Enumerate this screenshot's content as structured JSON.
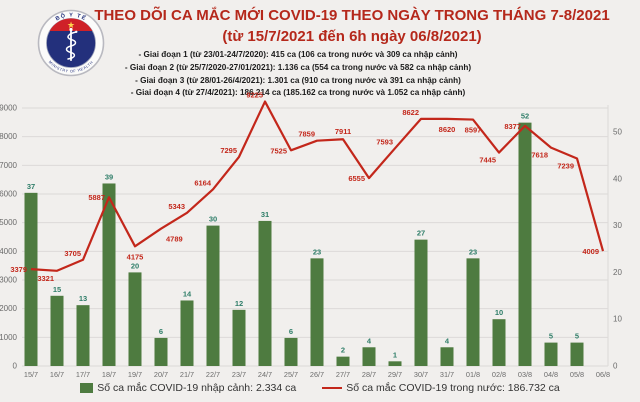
{
  "header": {
    "title": "THEO DÕI CA MẮC MỚI COVID-19 THEO NGÀY TRONG THÁNG 7-8/2021",
    "subtitle": "(từ 15/7/2021 đến 6h ngày 06/8/2021)",
    "bullets": [
      "- Giai đoạn 1 (từ 23/01-24/7/2020): 415 ca (106 ca trong nước và 309 ca nhập cảnh)",
      "- Giai đoạn 2 (từ 25/7/2020-27/01/2021): 1.136 ca (554 ca trong nước và 582 ca nhập cảnh)",
      "- Giai đoạn 3 (từ 28/01-26/4/2021): 1.301 ca (910 ca trong nước và 391 ca nhập cảnh)",
      "- Giai đoạn 4 (từ 27/4/2021): 186.214 ca (185.162 ca trong nước và 1.052 ca nhập cảnh)"
    ],
    "logo": {
      "ring_top": "BỘ Y TẾ",
      "ring_bottom": "MINISTRY OF HEALTH"
    }
  },
  "colors": {
    "background": "#f1efed",
    "title": "#b5281b",
    "bar": "#4e7b40",
    "bar_label": "#2e7d68",
    "line": "#c3271b",
    "axis_text": "#6b6b6b",
    "grid": "#dcdad8",
    "legend_text": "#333333",
    "logo_navy": "#23307c",
    "logo_red": "#cf2128",
    "logo_star": "#ffd64d"
  },
  "chart_data": {
    "type": "combo-bar-line",
    "categories": [
      "15/7",
      "16/7",
      "17/7",
      "18/7",
      "19/7",
      "20/7",
      "21/7",
      "22/7",
      "23/7",
      "24/7",
      "25/7",
      "26/7",
      "27/7",
      "28/7",
      "29/7",
      "30/7",
      "31/7",
      "01/8",
      "02/8",
      "03/8",
      "04/8",
      "05/8",
      "06/8"
    ],
    "series": [
      {
        "name": "Số ca mắc COVID-19 nhập cảnh",
        "type": "bar",
        "axis": "right",
        "color": "#4e7b40",
        "values": [
          37,
          15,
          13,
          39,
          20,
          6,
          14,
          30,
          12,
          31,
          6,
          23,
          2,
          4,
          1,
          27,
          4,
          23,
          10,
          52,
          5,
          5,
          0
        ]
      },
      {
        "name": "Số ca mắc COVID-19 trong nước",
        "type": "line",
        "axis": "left",
        "color": "#c3271b",
        "values": [
          3379,
          3321,
          3705,
          5887,
          4175,
          4789,
          5343,
          6164,
          7295,
          9225,
          7525,
          7859,
          7911,
          6555,
          7593,
          8622,
          8620,
          8597,
          7445,
          8377,
          7618,
          7239,
          4009
        ]
      }
    ],
    "left_axis": {
      "min": 0,
      "max": 9000,
      "ticks": [
        0,
        1000,
        2000,
        3000,
        4000,
        5000,
        6000,
        7000,
        8000,
        9000
      ]
    },
    "right_axis": {
      "min": 0,
      "max": 50,
      "ticks": [
        0,
        10,
        20,
        30,
        40,
        50
      ]
    },
    "grid": true,
    "legend_position": "bottom",
    "legend": [
      {
        "swatch": "bar",
        "color": "#4e7b40",
        "label": "Số ca mắc COVID-19 nhập cảnh: 2.334 ca"
      },
      {
        "swatch": "line",
        "color": "#c3271b",
        "label": "Số ca mắc COVID-19 trong nước: 186.732 ca"
      }
    ]
  }
}
